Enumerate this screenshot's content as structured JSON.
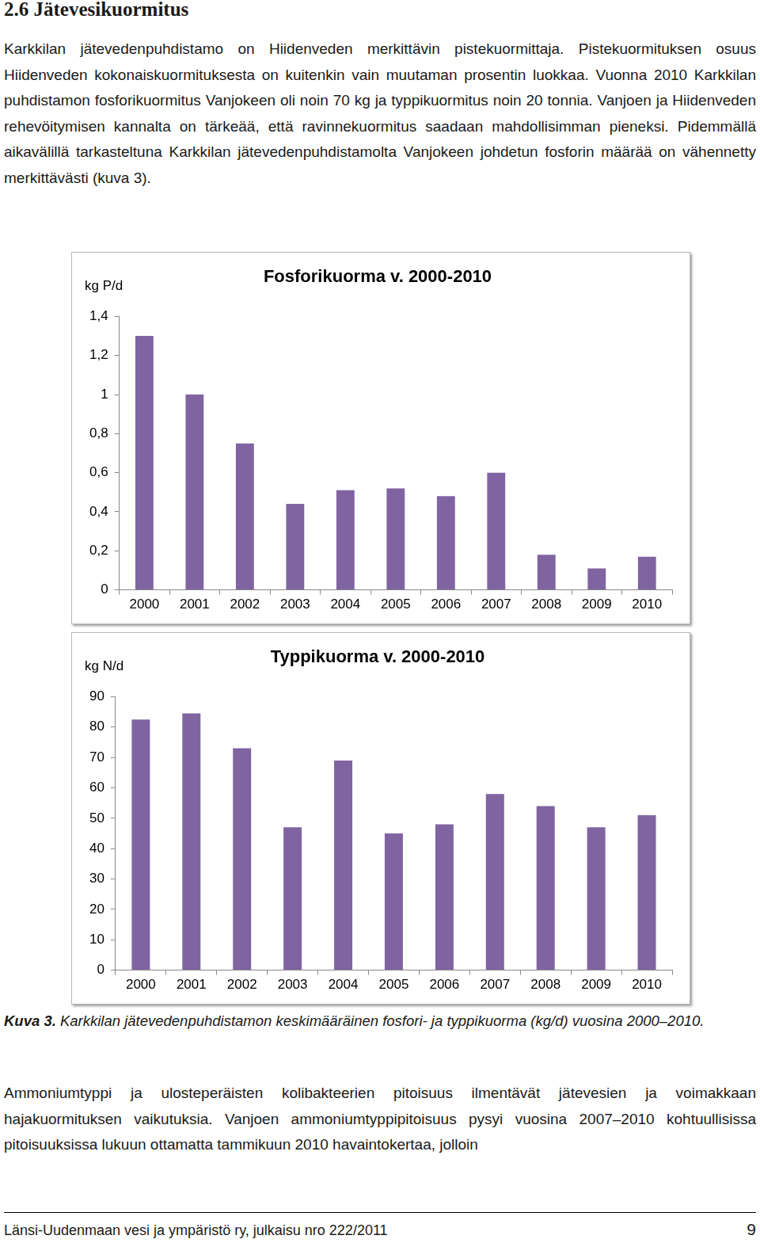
{
  "heading": "2.6 Jätevesikuormitus",
  "paragraphs": [
    "Karkkilan jätevedenpuhdistamo on Hiidenveden merkittävin pistekuormittaja. Pistekuormituksen osuus Hiidenveden kokonaiskuormituksesta on kuitenkin vain muutaman prosentin luokkaa. Vuonna 2010 Karkkilan puhdistamon fosforikuormitus Vanjokeen oli noin 70 kg ja typpikuormitus noin 20 tonnia. Vanjoen ja Hiidenveden rehevöitymisen kannalta on tärkeää, että ravinnekuormitus saadaan mahdollisimman pieneksi. Pidemmällä aikavälillä tarkasteltuna Karkkilan jätevedenpuhdistamolta Vanjokeen johdetun fosforin määrää on vähennetty merkittävästi (kuva 3).",
    "Ammoniumtyppi ja ulosteperäisten kolibakteerien pitoisuus ilmentävät jätevesien ja voimakkaan hajakuormituksen vaikutuksia. Vanjoen ammoniumtyppipitoisuus pysyi vuosina 2007–2010 kohtuullisissa pitoisuuksissa lukuun ottamatta tammikuun 2010 havaintokertaa, jolloin"
  ],
  "chart_data": [
    {
      "type": "bar",
      "title": "Fosforikuorma v. 2000-2010",
      "ylabel": "kg P/d",
      "categories": [
        "2000",
        "2001",
        "2002",
        "2003",
        "2004",
        "2005",
        "2006",
        "2007",
        "2008",
        "2009",
        "2010"
      ],
      "values": [
        1.3,
        1.0,
        0.75,
        0.44,
        0.51,
        0.52,
        0.48,
        0.6,
        0.18,
        0.11,
        0.17
      ],
      "color": "#8064a2",
      "ylim": [
        0,
        1.4
      ],
      "yticks": [
        0,
        {
          "value": 0.2,
          "label": "0,2"
        },
        {
          "value": 0.4,
          "label": "0,4"
        },
        {
          "value": 0.6,
          "label": "0,6"
        },
        {
          "value": 0.8,
          "label": "0,8"
        },
        1,
        {
          "value": 1.2,
          "label": "1,2"
        },
        {
          "value": 1.4,
          "label": "1,4"
        }
      ],
      "grid": false
    },
    {
      "type": "bar",
      "title": "Typpikuorma v. 2000-2010",
      "ylabel": "kg N/d",
      "categories": [
        "2000",
        "2001",
        "2002",
        "2003",
        "2004",
        "2005",
        "2006",
        "2007",
        "2008",
        "2009",
        "2010"
      ],
      "values": [
        82.5,
        84.5,
        73,
        47,
        69,
        45,
        48,
        58,
        54,
        47,
        51
      ],
      "color": "#8064a2",
      "ylim": [
        0,
        90
      ],
      "yticks": [
        0,
        10,
        20,
        30,
        40,
        50,
        60,
        70,
        80,
        90
      ],
      "grid": false
    }
  ],
  "caption": {
    "label": "Kuva 3.",
    "text": "Karkkilan jätevedenpuhdistamon keskimääräinen fosfori- ja typpikuorma (kg/d) vuosina 2000–2010."
  },
  "footer": {
    "text": "Länsi-Uudenmaan vesi ja ympäristö ry, julkaisu nro 222/2011",
    "page": "9"
  }
}
